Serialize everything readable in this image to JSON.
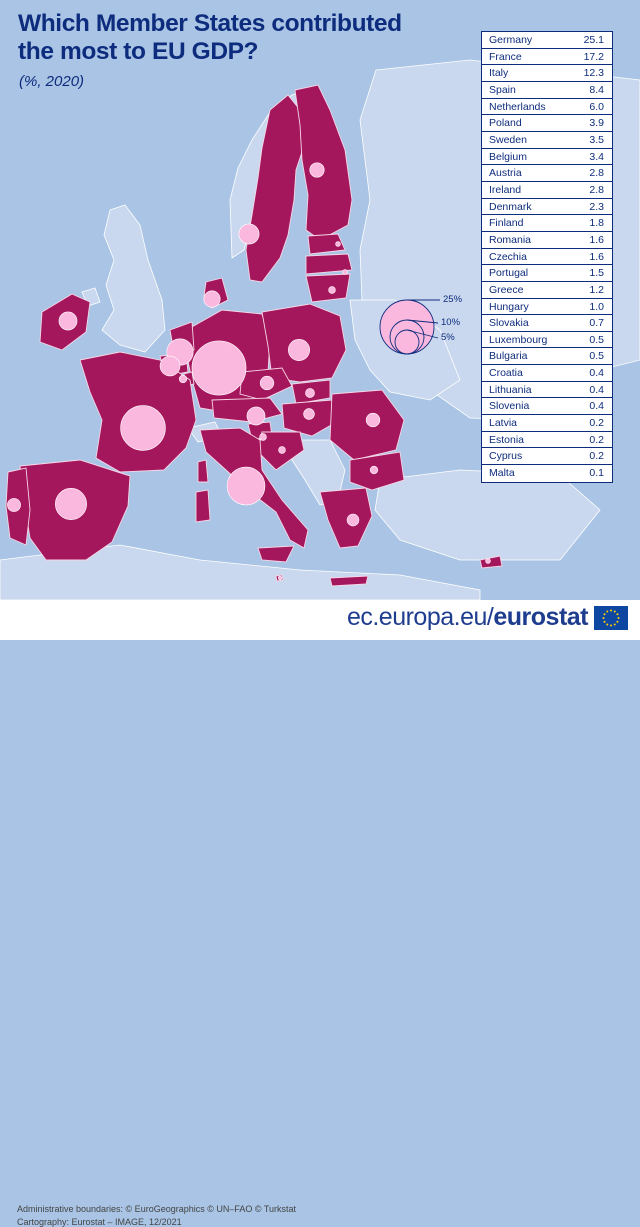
{
  "title": "Which Member States contributed the most to EU GDP?",
  "subtitle": "(%, 2020)",
  "table": [
    {
      "country": "Germany",
      "value": "25.1"
    },
    {
      "country": "France",
      "value": "17.2"
    },
    {
      "country": "Italy",
      "value": "12.3"
    },
    {
      "country": "Spain",
      "value": "8.4"
    },
    {
      "country": "Netherlands",
      "value": "6.0"
    },
    {
      "country": "Poland",
      "value": "3.9"
    },
    {
      "country": "Sweden",
      "value": "3.5"
    },
    {
      "country": "Belgium",
      "value": "3.4"
    },
    {
      "country": "Austria",
      "value": "2.8"
    },
    {
      "country": "Ireland",
      "value": "2.8"
    },
    {
      "country": "Denmark",
      "value": "2.3"
    },
    {
      "country": "Finland",
      "value": "1.8"
    },
    {
      "country": "Romania",
      "value": "1.6"
    },
    {
      "country": "Czechia",
      "value": "1.6"
    },
    {
      "country": "Portugal",
      "value": "1.5"
    },
    {
      "country": "Greece",
      "value": "1.2"
    },
    {
      "country": "Hungary",
      "value": "1.0"
    },
    {
      "country": "Slovakia",
      "value": "0.7"
    },
    {
      "country": "Luxembourg",
      "value": "0.5"
    },
    {
      "country": "Bulgaria",
      "value": "0.5"
    },
    {
      "country": "Croatia",
      "value": "0.4"
    },
    {
      "country": "Lithuania",
      "value": "0.4"
    },
    {
      "country": "Slovenia",
      "value": "0.4"
    },
    {
      "country": "Latvia",
      "value": "0.2"
    },
    {
      "country": "Estonia",
      "value": "0.2"
    },
    {
      "country": "Cyprus",
      "value": "0.2"
    },
    {
      "country": "Malta",
      "value": "0.1"
    }
  ],
  "legend": {
    "large": "25%",
    "medium": "10%",
    "small": "5%"
  },
  "credits": {
    "line1": "Administrative boundaries: © EuroGeographics © UN–FAO © Turkstat",
    "line2": "Cartography: Eurostat – IMAGE, 12/2021"
  },
  "brand": {
    "url": "ec.europa.eu/",
    "name": "eurostat"
  },
  "colors": {
    "sea": "#a9c4e4",
    "eu_member": "#a4175d",
    "non_eu_land": "#c9d8ee",
    "bubble": "#fbb8de",
    "text": "#0e2c7d"
  }
}
